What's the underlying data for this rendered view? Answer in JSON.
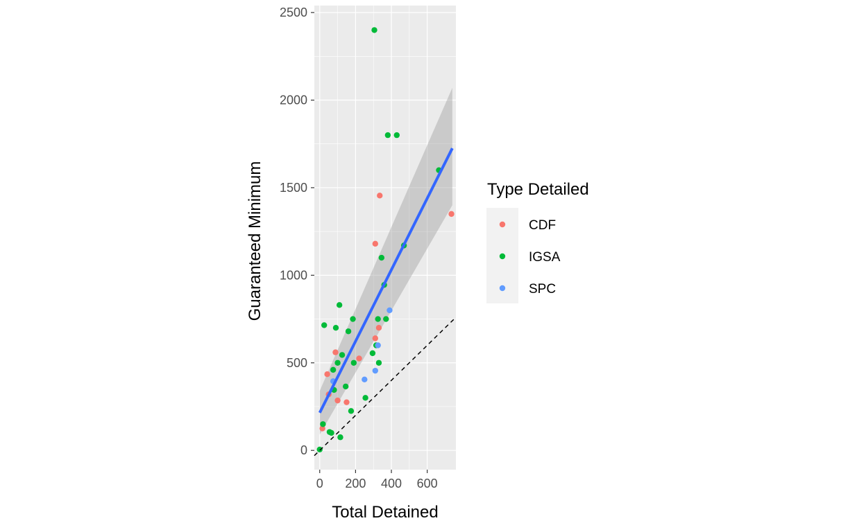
{
  "chart_data": {
    "type": "scatter",
    "xlabel": "Total Detained",
    "ylabel": "Guaranteed Minimum",
    "xlim": [
      -30,
      760
    ],
    "ylim": [
      -110,
      2540
    ],
    "x_ticks": [
      0,
      200,
      400,
      600
    ],
    "y_ticks": [
      0,
      500,
      1000,
      1500,
      2000,
      2500
    ],
    "x_tick_labels": [
      "0",
      "200",
      "400",
      "600"
    ],
    "y_tick_labels": [
      "0",
      "500",
      "1000",
      "1500",
      "2000",
      "2500"
    ],
    "grid": true,
    "legend": {
      "title": "Type Detailed",
      "placement": "right",
      "entries": [
        {
          "label": "CDF",
          "color": "#F8766D"
        },
        {
          "label": "IGSA",
          "color": "#00BA38"
        },
        {
          "label": "SPC",
          "color": "#619CFF"
        }
      ]
    },
    "series": [
      {
        "name": "CDF",
        "color": "#F8766D",
        "points": [
          [
            15,
            125
          ],
          [
            42,
            435
          ],
          [
            50,
            320
          ],
          [
            88,
            560
          ],
          [
            100,
            285
          ],
          [
            150,
            275
          ],
          [
            220,
            525
          ],
          [
            310,
            640
          ],
          [
            310,
            1180
          ],
          [
            330,
            700
          ],
          [
            335,
            1455
          ],
          [
            735,
            1350
          ]
        ]
      },
      {
        "name": "IGSA",
        "color": "#00BA38",
        "points": [
          [
            0,
            5
          ],
          [
            18,
            150
          ],
          [
            25,
            715
          ],
          [
            55,
            105
          ],
          [
            65,
            100
          ],
          [
            75,
            460
          ],
          [
            80,
            345
          ],
          [
            90,
            700
          ],
          [
            100,
            500
          ],
          [
            110,
            830
          ],
          [
            115,
            75
          ],
          [
            125,
            545
          ],
          [
            145,
            365
          ],
          [
            160,
            680
          ],
          [
            185,
            750
          ],
          [
            190,
            500
          ],
          [
            175,
            225
          ],
          [
            255,
            300
          ],
          [
            295,
            555
          ],
          [
            305,
            2400
          ],
          [
            315,
            600
          ],
          [
            325,
            750
          ],
          [
            330,
            500
          ],
          [
            345,
            1100
          ],
          [
            360,
            945
          ],
          [
            370,
            750
          ],
          [
            380,
            1800
          ],
          [
            430,
            1800
          ],
          [
            470,
            1170
          ],
          [
            665,
            1600
          ]
        ]
      },
      {
        "name": "SPC",
        "color": "#619CFF",
        "points": [
          [
            75,
            395
          ],
          [
            250,
            405
          ],
          [
            310,
            455
          ],
          [
            325,
            600
          ],
          [
            390,
            800
          ]
        ]
      }
    ],
    "smooth": {
      "method": "lm",
      "color": "#3366FF",
      "x_range": [
        0,
        740
      ],
      "y_at_range": [
        215,
        1725
      ],
      "ci_lower": [
        90,
        1400
      ],
      "ci_upper": [
        340,
        2070
      ]
    },
    "reference_line": {
      "style": "dashed",
      "slope": 1,
      "intercept": 0
    }
  }
}
